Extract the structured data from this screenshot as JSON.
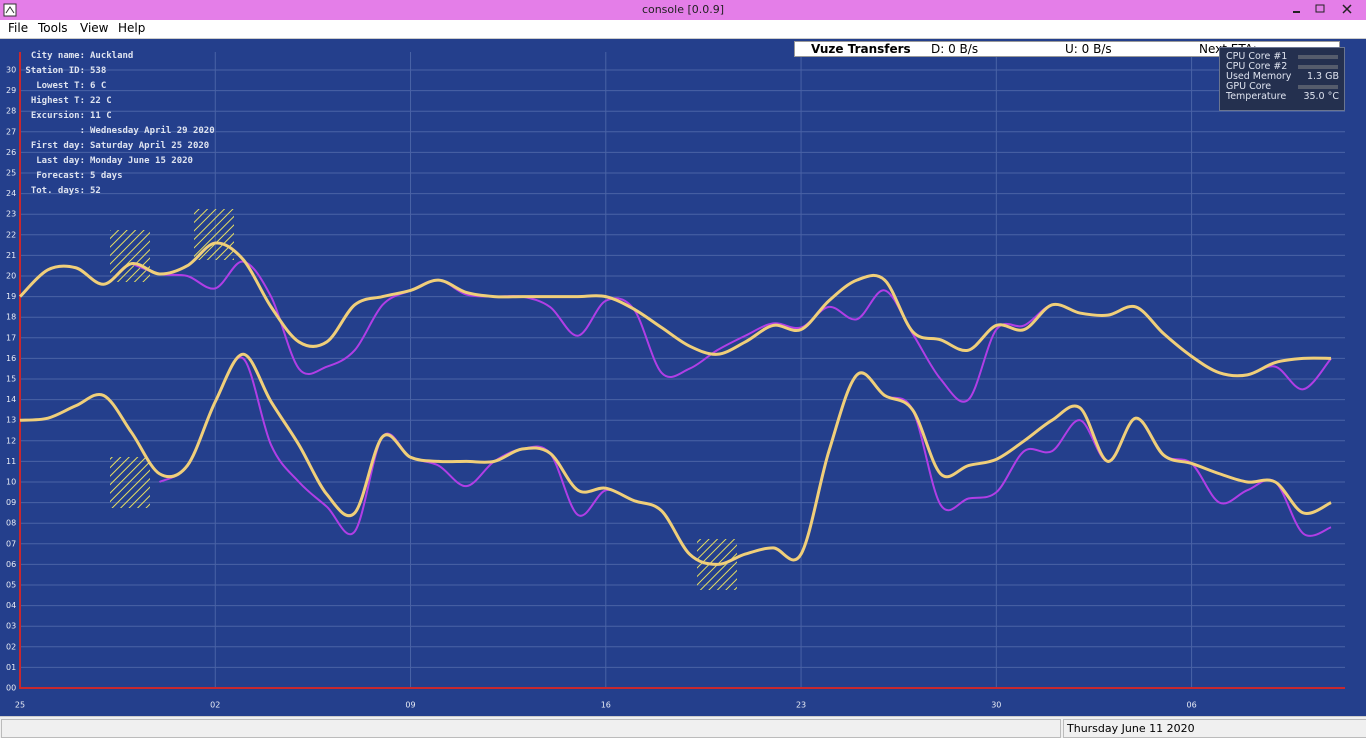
{
  "window": {
    "title": "console [0.0.9]"
  },
  "menu": [
    "File",
    "Tools",
    "View",
    "Help"
  ],
  "vuze": {
    "title": "Vuze Transfers",
    "download": "D: 0 B/s",
    "upload": "U: 0 B/s",
    "eta": "Next ETA: ∞"
  },
  "info": [
    [
      "City name:",
      "Auckland"
    ],
    [
      "Station ID:",
      "538"
    ],
    [
      "Lowest T:",
      "6 C"
    ],
    [
      "Highest T:",
      "22 C"
    ],
    [
      "Excursion:",
      "11 C"
    ],
    [
      ":",
      "Wednesday April 29 2020"
    ],
    [
      "First day:",
      "Saturday April 25 2020"
    ],
    [
      "Last day:",
      "Monday June 15 2020"
    ],
    [
      "Forecast:",
      "5 days"
    ],
    [
      "Tot. days:",
      "52"
    ]
  ],
  "monitor": [
    {
      "label": "CPU Core #1"
    },
    {
      "label": "CPU Core #2"
    },
    {
      "label": "Used Memory",
      "value": "1.3 GB"
    },
    {
      "label": "GPU Core"
    },
    {
      "label": "Temperature",
      "value": "35.0 °C"
    }
  ],
  "status": "Thursday June 11 2020",
  "chart_data": {
    "type": "line",
    "x": [
      0,
      1,
      2,
      3,
      4,
      5,
      6,
      7,
      8,
      9,
      10,
      11,
      12,
      13,
      14,
      15,
      16,
      17,
      18,
      19,
      20,
      21,
      22,
      23,
      24,
      25,
      26,
      27,
      28,
      29,
      30,
      31,
      32,
      33,
      34,
      35,
      36,
      37,
      38,
      39,
      40,
      41,
      42,
      43,
      44,
      45,
      46,
      47
    ],
    "xlim": [
      0,
      47.5
    ],
    "xticks": [
      {
        "value": 0,
        "label": "25"
      },
      {
        "value": 7,
        "label": "02"
      },
      {
        "value": 14,
        "label": "09"
      },
      {
        "value": 21,
        "label": "16"
      },
      {
        "value": 28,
        "label": "23"
      },
      {
        "value": 35,
        "label": "30"
      },
      {
        "value": 42,
        "label": "06"
      }
    ],
    "ylim": [
      0,
      31
    ],
    "yticks": [
      {
        "value": 0,
        "label": "00"
      },
      {
        "value": 1,
        "label": "01"
      },
      {
        "value": 2,
        "label": "02"
      },
      {
        "value": 3,
        "label": "03"
      },
      {
        "value": 4,
        "label": "04"
      },
      {
        "value": 5,
        "label": "05"
      },
      {
        "value": 6,
        "label": "06"
      },
      {
        "value": 7,
        "label": "07"
      },
      {
        "value": 8,
        "label": "08"
      },
      {
        "value": 9,
        "label": "09"
      },
      10,
      11,
      12,
      13,
      14,
      15,
      16,
      17,
      18,
      19,
      20,
      21,
      22,
      23,
      24,
      25,
      26,
      27,
      28,
      29,
      30
    ],
    "grid": true,
    "series": [
      {
        "color": "#b03ee6",
        "width": 2,
        "values": [
          null,
          null,
          null,
          null,
          20.6,
          20.1,
          20.0,
          19.4,
          20.7,
          19.0,
          15.5,
          15.6,
          16.4,
          18.6,
          19.3,
          19.8,
          19.1,
          19.0,
          19.0,
          18.5,
          17.1,
          18.8,
          18.4,
          15.3,
          15.5,
          16.4,
          17.1,
          17.7,
          17.5,
          18.5,
          17.9,
          19.3,
          17.2,
          15.0,
          14.0,
          17.4,
          17.6,
          18.6,
          18.2,
          18.1,
          18.5,
          17.2,
          16.1,
          15.3,
          15.2,
          15.6,
          14.5,
          16.0
        ]
      },
      {
        "color": "#f0cf7a",
        "width": 3,
        "values": [
          19.0,
          20.3,
          20.4,
          19.6,
          20.6,
          20.1,
          20.5,
          21.6,
          20.8,
          18.5,
          16.8,
          16.8,
          18.6,
          19.0,
          19.3,
          19.8,
          19.2,
          19.0,
          19.0,
          19.0,
          19.0,
          19.0,
          18.4,
          17.5,
          16.6,
          16.2,
          16.8,
          17.6,
          17.4,
          18.8,
          19.8,
          19.8,
          17.3,
          16.9,
          16.4,
          17.6,
          17.4,
          18.6,
          18.2,
          18.1,
          18.5,
          17.2,
          16.1,
          15.3,
          15.2,
          15.8,
          16.0,
          16.0
        ]
      },
      {
        "color": "#b03ee6",
        "width": 2,
        "values": [
          null,
          null,
          null,
          null,
          null,
          10.0,
          10.8,
          13.9,
          16.0,
          11.8,
          10.0,
          8.8,
          7.6,
          12.2,
          11.2,
          10.8,
          9.8,
          11.0,
          11.6,
          11.4,
          8.4,
          9.6,
          9.1,
          8.6,
          6.5,
          6.0,
          6.5,
          6.8,
          6.5,
          11.5,
          15.2,
          14.2,
          13.5,
          8.9,
          9.2,
          9.5,
          11.5,
          11.5,
          13.0,
          11.0,
          13.1,
          11.3,
          10.9,
          9.0,
          9.6,
          10.0,
          7.5,
          7.8
        ]
      },
      {
        "color": "#f0cf7a",
        "width": 3,
        "values": [
          13.0,
          13.1,
          13.7,
          14.2,
          12.4,
          10.4,
          10.8,
          13.9,
          16.2,
          13.9,
          11.8,
          9.4,
          8.5,
          12.2,
          11.2,
          11.0,
          11.0,
          11.0,
          11.6,
          11.4,
          9.6,
          9.7,
          9.1,
          8.6,
          6.5,
          6.0,
          6.5,
          6.8,
          6.5,
          11.5,
          15.2,
          14.2,
          13.5,
          10.4,
          10.8,
          11.1,
          12.0,
          13.0,
          13.6,
          11.0,
          13.1,
          11.3,
          10.9,
          10.4,
          10.0,
          10.0,
          8.5,
          9.0
        ]
      }
    ]
  }
}
